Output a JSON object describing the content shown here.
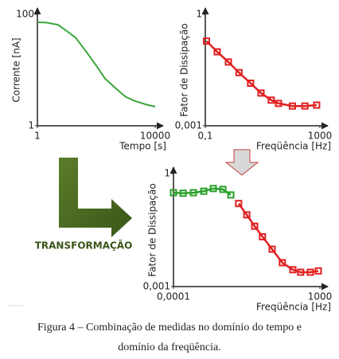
{
  "chart_data": [
    {
      "type": "line",
      "xlabel": "Tempo [s]",
      "ylabel": "Corrente [nA]",
      "xlog": true,
      "ylog": true,
      "xlim": [
        1,
        10000
      ],
      "ylim": [
        1,
        100
      ],
      "xticks": [
        1,
        10000
      ],
      "yticks": [
        1,
        100
      ],
      "markers": false,
      "series": [
        {
          "color": "#3aa63a",
          "x": [
            1,
            2,
            5,
            10,
            20,
            50,
            100,
            200,
            500,
            1000,
            2000,
            5000,
            10000
          ],
          "values": [
            72,
            71,
            65,
            50,
            38,
            20,
            12,
            7,
            4.5,
            3.3,
            2.8,
            2.4,
            2.2
          ]
        }
      ]
    },
    {
      "type": "line",
      "xlabel": "Freqüência [Hz]",
      "ylabel": "Fator de Dissipação",
      "xlog": true,
      "ylog": true,
      "xlim": [
        0.1,
        1000
      ],
      "ylim": [
        0.001,
        1
      ],
      "xticks": [
        {
          "value": 0.1,
          "label": "0,1"
        },
        1000
      ],
      "yticks": [
        {
          "value": 0.001,
          "label": "0,001"
        },
        1
      ],
      "markers": true,
      "series": [
        {
          "color": "#e02020",
          "x": [
            0.11,
            0.26,
            0.64,
            1.5,
            3.8,
            8.8,
            20,
            36,
            110,
            300,
            770
          ],
          "values": [
            0.19,
            0.098,
            0.052,
            0.027,
            0.014,
            0.0076,
            0.0049,
            0.004,
            0.0034,
            0.0034,
            0.0036
          ]
        }
      ]
    },
    {
      "type": "line",
      "xlabel": "Freqüência [Hz]",
      "ylabel": "Fator de Dissipação",
      "xlog": true,
      "ylog": true,
      "xlim": [
        0.0001,
        1000
      ],
      "ylim": [
        0.001,
        1
      ],
      "xticks": [
        {
          "value": 0.0001,
          "label": "0,0001"
        },
        1000
      ],
      "yticks": [
        {
          "value": 0.001,
          "label": "0,001"
        },
        1
      ],
      "markers": true,
      "series": [
        {
          "color": "#2aa02a",
          "x": [
            0.0001,
            0.00029,
            0.0009,
            0.0028,
            0.008,
            0.023,
            0.055
          ],
          "values": [
            0.31,
            0.3,
            0.31,
            0.34,
            0.4,
            0.38,
            0.27
          ]
        },
        {
          "color": "#e02020",
          "x": [
            0.13,
            0.32,
            0.76,
            1.8,
            5.2,
            16,
            51,
            120,
            350,
            840
          ],
          "values": [
            0.16,
            0.08,
            0.04,
            0.021,
            0.0098,
            0.0043,
            0.0028,
            0.0024,
            0.0024,
            0.0026
          ]
        }
      ]
    }
  ],
  "transform_label": "TRANSFORMAÇÃO",
  "caption": [
    "Figura 4 – Combinação de medidas no domínio do tempo e",
    "domínio da freqüência."
  ]
}
